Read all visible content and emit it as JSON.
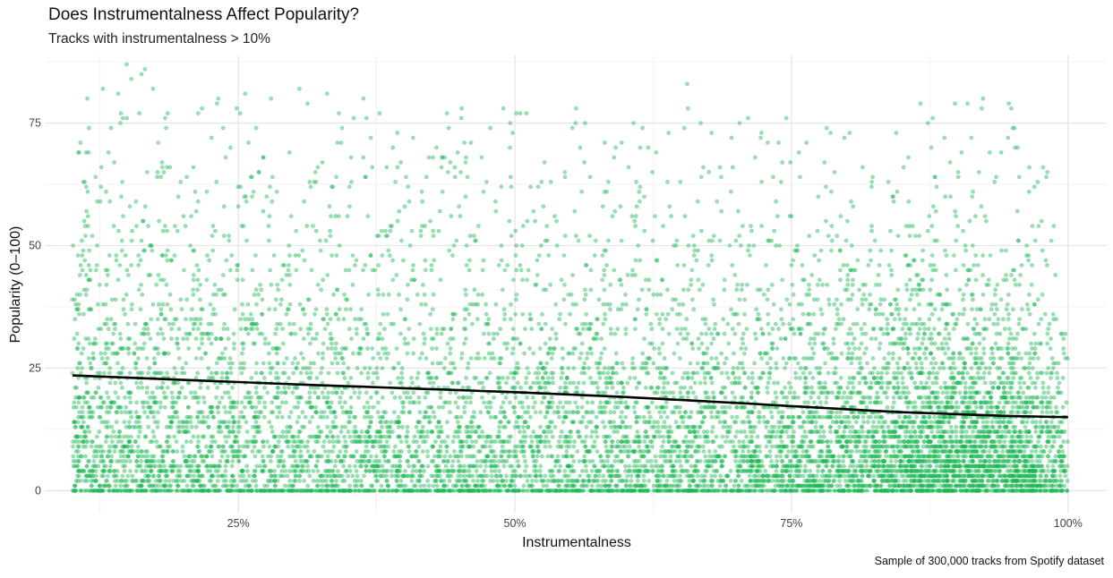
{
  "chart_data": {
    "type": "scatter",
    "title": "Does Instrumentalness Affect Popularity?",
    "subtitle": "Tracks with instrumentalness > 10%",
    "caption": "Sample of 300,000 tracks from Spotify dataset",
    "xlabel": "Instrumentalness",
    "ylabel": "Popularity (0–100)",
    "xlim": [
      0.075,
      1.035
    ],
    "ylim": [
      -4.5,
      88.8
    ],
    "x_ticks": [
      {
        "value": 0.25,
        "label": "25%"
      },
      {
        "value": 0.5,
        "label": "50%"
      },
      {
        "value": 0.75,
        "label": "75%"
      },
      {
        "value": 1.0,
        "label": "100%"
      }
    ],
    "y_ticks": [
      {
        "value": 0,
        "label": "0"
      },
      {
        "value": 25,
        "label": "25"
      },
      {
        "value": 50,
        "label": "50"
      },
      {
        "value": 75,
        "label": "75"
      }
    ],
    "grid": true,
    "point_color": "#1DB954",
    "point_opacity": 0.45,
    "smooth_color": "#000000",
    "smooth_line": {
      "x": [
        0.1,
        0.2,
        0.3,
        0.4,
        0.5,
        0.6,
        0.7,
        0.8,
        0.85,
        0.9,
        0.95,
        1.0
      ],
      "y": [
        23.5,
        22.6,
        21.7,
        20.9,
        20.1,
        19.1,
        17.9,
        16.6,
        16.0,
        15.6,
        15.2,
        15.0
      ]
    },
    "density_profile": {
      "x": [
        0.1,
        0.2,
        0.3,
        0.4,
        0.5,
        0.6,
        0.7,
        0.8,
        0.85,
        0.9,
        0.95,
        1.0
      ],
      "relative_density": [
        0.55,
        0.45,
        0.42,
        0.42,
        0.42,
        0.42,
        0.45,
        0.6,
        0.8,
        1.0,
        0.85,
        0.3
      ]
    },
    "max_popularity_by_x": {
      "x": [
        0.1,
        0.15,
        0.2,
        0.25,
        0.3,
        0.35,
        0.4,
        0.5,
        0.6,
        0.65,
        0.7,
        0.8,
        0.9,
        0.95,
        1.0
      ],
      "y": [
        83,
        88,
        82,
        83,
        83,
        82,
        75,
        83,
        77,
        87,
        77,
        78,
        82,
        79,
        76
      ]
    }
  }
}
